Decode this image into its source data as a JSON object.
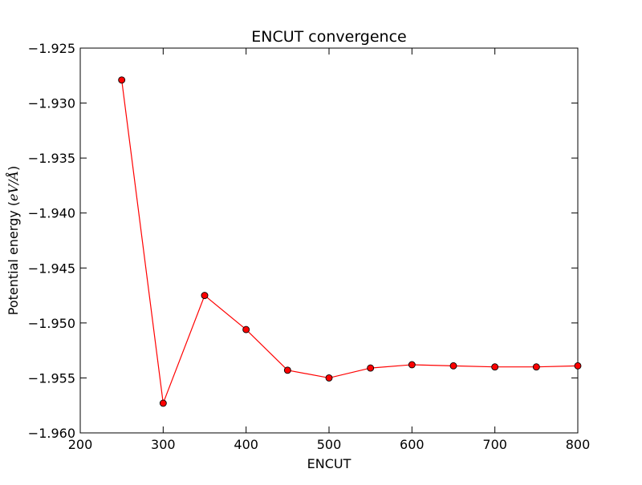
{
  "chart_data": {
    "type": "line",
    "title": "ENCUT convergence",
    "xlabel": "ENCUT",
    "ylabel": {
      "prefix": "Potential energy (",
      "unit": "eV/Å",
      "suffix": ")"
    },
    "xlim": [
      200,
      800
    ],
    "ylim": [
      -1.96,
      -1.925
    ],
    "xticks": [
      200,
      300,
      400,
      500,
      600,
      700,
      800
    ],
    "xtick_labels": [
      "200",
      "300",
      "400",
      "500",
      "600",
      "700",
      "800"
    ],
    "yticks": [
      -1.925,
      -1.93,
      -1.935,
      -1.94,
      -1.945,
      -1.95,
      -1.955,
      -1.96
    ],
    "ytick_labels": [
      "−1.925",
      "−1.930",
      "−1.935",
      "−1.940",
      "−1.945",
      "−1.950",
      "−1.955",
      "−1.960"
    ],
    "grid": false,
    "legend": null,
    "series": [
      {
        "x": [
          250,
          300,
          350,
          400,
          450,
          500,
          550,
          600,
          650,
          700,
          750,
          800
        ],
        "y": [
          -1.9279,
          -1.9573,
          -1.9475,
          -1.9506,
          -1.9543,
          -1.955,
          -1.9541,
          -1.9538,
          -1.9539,
          -1.954,
          -1.954,
          -1.9539
        ],
        "line_color": "#ff0000",
        "marker": "circle",
        "marker_face": "#ff0000",
        "marker_edge": "#000000"
      }
    ]
  }
}
